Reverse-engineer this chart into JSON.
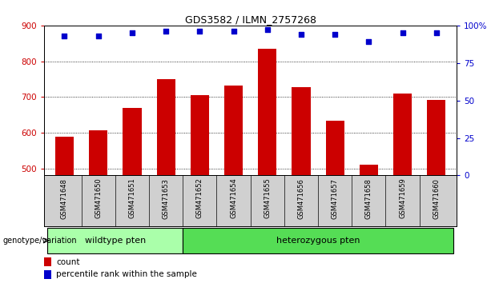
{
  "title": "GDS3582 / ILMN_2757268",
  "samples": [
    "GSM471648",
    "GSM471650",
    "GSM471651",
    "GSM471653",
    "GSM471652",
    "GSM471654",
    "GSM471655",
    "GSM471656",
    "GSM471657",
    "GSM471658",
    "GSM471659",
    "GSM471660"
  ],
  "counts": [
    588,
    607,
    668,
    750,
    706,
    732,
    835,
    727,
    633,
    510,
    710,
    692
  ],
  "percentiles": [
    93,
    93,
    95,
    96,
    96,
    96,
    97,
    94,
    94,
    89,
    95,
    95
  ],
  "ylim_left": [
    480,
    900
  ],
  "ylim_right": [
    0,
    100
  ],
  "yticks_left": [
    500,
    600,
    700,
    800,
    900
  ],
  "yticks_right": [
    0,
    25,
    50,
    75,
    100
  ],
  "bar_color": "#cc0000",
  "dot_color": "#0000cc",
  "wildtype_label": "wildtype pten",
  "heterozygous_label": "heterozygous pten",
  "genotype_label": "genotype/variation",
  "legend_count": "count",
  "legend_percentile": "percentile rank within the sample",
  "wildtype_color": "#aaffaa",
  "heterozygous_color": "#55dd55",
  "label_bg_color": "#d0d0d0",
  "n_wildtype": 4,
  "n_heterozygous": 8
}
